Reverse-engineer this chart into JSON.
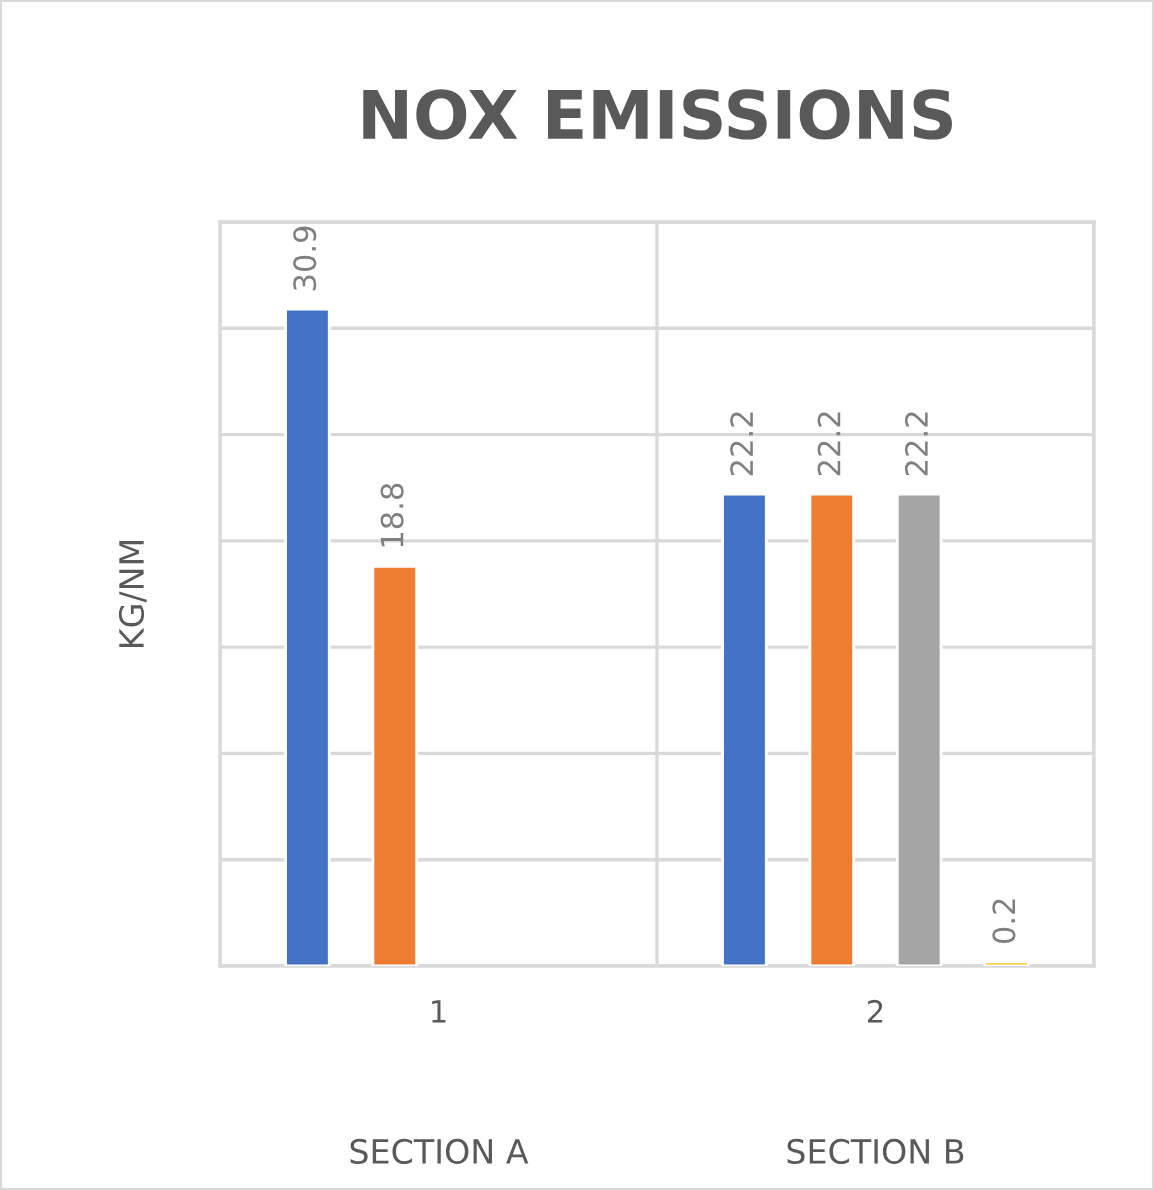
{
  "chart_data": {
    "type": "bar",
    "title": "NOX EMISSIONS",
    "ylabel": "KG/NM",
    "categories": [
      "1",
      "2"
    ],
    "series": [
      {
        "color": "#4472c4",
        "values": [
          30.9,
          22.2
        ]
      },
      {
        "color": "#ed7d31",
        "values": [
          18.8,
          22.2
        ]
      },
      {
        "color": "#a5a5a5",
        "values": [
          null,
          22.2
        ]
      },
      {
        "color": "#ffc000",
        "values": [
          null,
          0.2
        ]
      }
    ],
    "ylim": [
      0,
      35
    ],
    "yticks": [
      {
        "value": 0,
        "label": null
      },
      {
        "value": 5,
        "label": null
      },
      {
        "value": 10,
        "label": null
      },
      {
        "value": 15,
        "label": null
      },
      {
        "value": 20,
        "label": null
      },
      {
        "value": 25,
        "label": null
      },
      {
        "value": 30,
        "label": null
      },
      {
        "value": 35,
        "label": null
      }
    ],
    "tick_labels": "x",
    "grid": true,
    "legend": false,
    "data_labels": true,
    "annotations": [
      "SECTION A",
      "SECTION B"
    ]
  }
}
